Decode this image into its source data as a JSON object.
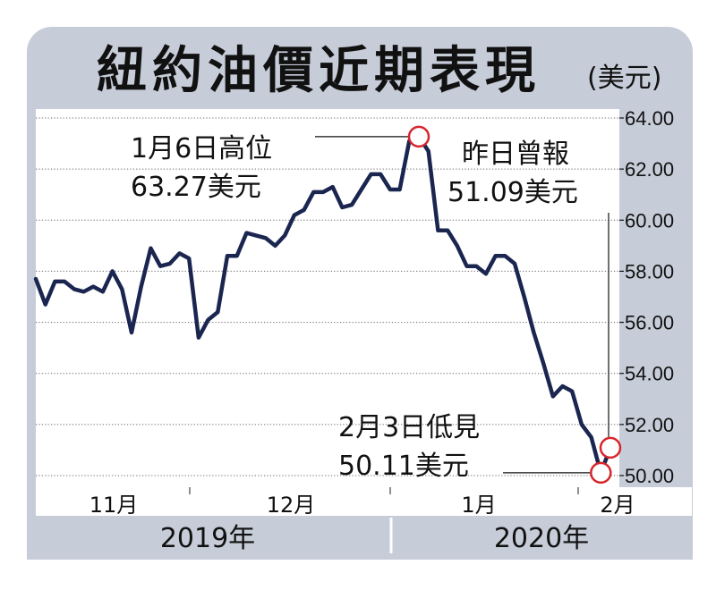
{
  "chart_data": {
    "type": "line",
    "title": "紐約油價近期表現",
    "unit": "(美元)",
    "ylim": [
      49.6,
      64.6
    ],
    "y_ticks": [
      "64.00",
      "62.00",
      "60.00",
      "58.00",
      "56.00",
      "54.00",
      "52.00",
      "50.00"
    ],
    "y_tick_values": [
      64,
      62,
      60,
      58,
      56,
      54,
      52,
      50
    ],
    "month_labels": [
      "11月",
      "12月",
      "1月",
      "2月"
    ],
    "year_labels": [
      "2019年",
      "2020年"
    ],
    "grid": true,
    "series": [
      {
        "values": [
          57.7,
          56.7,
          57.6,
          57.6,
          57.3,
          57.2,
          57.4,
          57.2,
          58.0,
          57.3,
          55.6,
          57.4,
          58.9,
          58.2,
          58.3,
          58.7,
          58.5,
          55.4,
          56.1,
          56.4,
          58.6,
          58.6,
          59.5,
          59.4,
          59.3,
          59.0,
          59.4,
          60.2,
          60.4,
          61.1,
          61.1,
          61.3,
          60.5,
          60.6,
          61.2,
          61.8,
          61.8,
          61.2,
          61.2,
          63.1,
          63.27,
          62.7,
          59.6,
          59.6,
          59.0,
          58.2,
          58.2,
          57.9,
          58.6,
          58.6,
          58.3,
          57.0,
          55.6,
          54.4,
          53.1,
          53.5,
          53.3,
          52.0,
          51.5,
          50.11,
          51.09
        ]
      }
    ],
    "annotations": [
      {
        "text_line1": "1月6日高位",
        "text_line2": "63.27美元",
        "index": 40
      },
      {
        "text_line1": "昨日曾報",
        "text_line2": "51.09美元",
        "index": 60
      },
      {
        "text_line1": "2月3日低見",
        "text_line2": "50.11美元",
        "index": 59
      }
    ],
    "colors": {
      "line": "#1b2650",
      "marker": "#d7262c",
      "frame": "#c6ccd8",
      "grid": "#666666"
    }
  }
}
